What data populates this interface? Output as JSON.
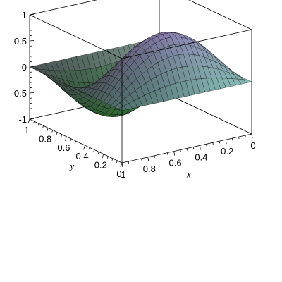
{
  "chart_data": {
    "type": "surface",
    "title": "",
    "function": "sin(pi*x)*sin(2*pi*y)",
    "x": {
      "label": "x",
      "range": [
        0,
        1
      ],
      "ticks": [
        "1",
        "0.8",
        "0.6",
        "0.4",
        "0.2",
        "0"
      ]
    },
    "y": {
      "label": "y",
      "range": [
        0,
        1
      ],
      "ticks": [
        "0",
        "0.2",
        "0.4",
        "0.6",
        "0.8",
        "1"
      ]
    },
    "z": {
      "label": "",
      "range": [
        -1,
        1
      ],
      "ticks": [
        "1",
        "0.5",
        "0",
        "-0.5",
        "-1"
      ]
    },
    "grid_lines": 25,
    "bounding_box": true,
    "colors": {
      "high": "#b090d8",
      "mid_left": "#f0d8f0",
      "low": "#3a8a3a",
      "right_edge": "#9ff0e8",
      "mesh": "#000000",
      "box": "#000000"
    }
  }
}
